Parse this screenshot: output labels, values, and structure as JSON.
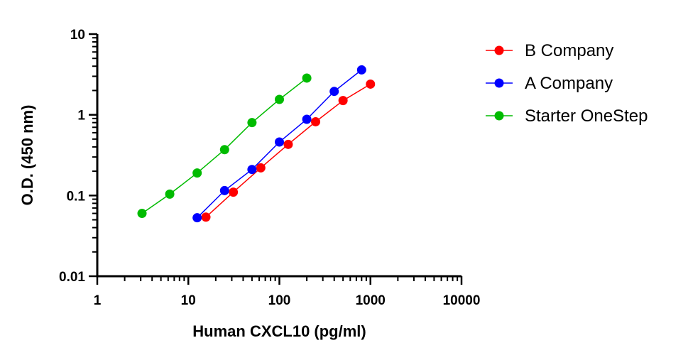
{
  "chart_data": {
    "type": "scatter",
    "title": "",
    "xlabel": "Human CXCL10 (pg/ml)",
    "ylabel": "O.D. (450 nm)",
    "xscale": "log",
    "yscale": "log",
    "xlim": [
      1,
      10000
    ],
    "ylim": [
      0.01,
      10
    ],
    "x_ticks": [
      "1",
      "10",
      "100",
      "1000",
      "10000"
    ],
    "y_ticks": [
      "0.01",
      "0.1",
      "1",
      "10"
    ],
    "grid": false,
    "legend_position": "right",
    "series": [
      {
        "name": "B Company",
        "color": "#ff0000",
        "x": [
          15.6,
          31.2,
          62.5,
          125,
          250,
          500,
          1000
        ],
        "y": [
          0.054,
          0.11,
          0.22,
          0.43,
          0.82,
          1.5,
          2.4
        ]
      },
      {
        "name": "A Company",
        "color": "#0000ff",
        "x": [
          12.5,
          25,
          50,
          100,
          200,
          400,
          800
        ],
        "y": [
          0.053,
          0.115,
          0.21,
          0.46,
          0.88,
          1.95,
          3.6
        ]
      },
      {
        "name": "Starter OneStep",
        "color": "#00bb00",
        "x": [
          3.1,
          6.25,
          12.5,
          25,
          50,
          100,
          200
        ],
        "y": [
          0.06,
          0.104,
          0.19,
          0.37,
          0.8,
          1.55,
          2.85
        ]
      }
    ]
  }
}
